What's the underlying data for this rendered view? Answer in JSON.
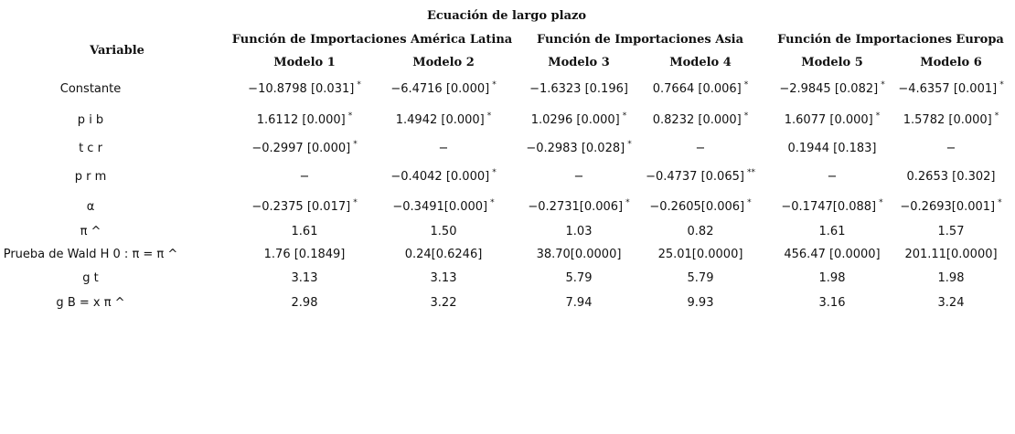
{
  "title": "Ecuación de largo plazo",
  "variable_header": "Variable",
  "groups": [
    "Función de Importaciones América Latina",
    "Función de Importaciones Asia",
    "Función de Importaciones Europa"
  ],
  "models": [
    "Modelo 1",
    "Modelo 2",
    "Modelo 3",
    "Modelo 4",
    "Modelo 5",
    "Modelo 6"
  ],
  "rows": [
    {
      "label": "Constante",
      "cells": [
        {
          "v": "−10.8798 [0.031]",
          "s": "*"
        },
        {
          "v": "−6.4716 [0.000]",
          "s": "*"
        },
        {
          "v": "−1.6323 [0.196]",
          "s": ""
        },
        {
          "v": "0.7664 [0.006]",
          "s": "*"
        },
        {
          "v": "−2.9845 [0.082]",
          "s": "*"
        },
        {
          "v": "−4.6357 [0.001]",
          "s": "*"
        }
      ]
    },
    {
      "label": "p i b",
      "cells": [
        {
          "v": "1.6112 [0.000]",
          "s": "*"
        },
        {
          "v": "1.4942 [0.000]",
          "s": "*"
        },
        {
          "v": "1.0296 [0.000]",
          "s": "*"
        },
        {
          "v": "0.8232 [0.000]",
          "s": "*"
        },
        {
          "v": "1.6077 [0.000]",
          "s": "*"
        },
        {
          "v": "1.5782 [0.000]",
          "s": "*"
        }
      ]
    },
    {
      "label": "t c r",
      "cells": [
        {
          "v": "−0.2997 [0.000]",
          "s": "*"
        },
        {
          "v": "−",
          "s": ""
        },
        {
          "v": "−0.2983 [0.028]",
          "s": "*"
        },
        {
          "v": "−",
          "s": ""
        },
        {
          "v": "0.1944 [0.183]",
          "s": ""
        },
        {
          "v": "−",
          "s": ""
        }
      ]
    },
    {
      "label": "p r m",
      "cells": [
        {
          "v": "−",
          "s": ""
        },
        {
          "v": "−0.4042 [0.000]",
          "s": "*"
        },
        {
          "v": "−",
          "s": ""
        },
        {
          "v": "−0.4737 [0.065]",
          "s": "**"
        },
        {
          "v": "−",
          "s": ""
        },
        {
          "v": "0.2653 [0.302]",
          "s": ""
        }
      ]
    },
    {
      "label": "α",
      "cells": [
        {
          "v": "−0.2375 [0.017]",
          "s": "*"
        },
        {
          "v": "−0.3491[0.000]",
          "s": "*"
        },
        {
          "v": "−0.2731[0.006]",
          "s": "*"
        },
        {
          "v": "−0.2605[0.006]",
          "s": "*"
        },
        {
          "v": "−0.1747[0.088]",
          "s": "*"
        },
        {
          "v": "−0.2693[0.001]",
          "s": "*"
        }
      ]
    },
    {
      "label": "π ^",
      "cells": [
        {
          "v": "1.61",
          "s": ""
        },
        {
          "v": "1.50",
          "s": ""
        },
        {
          "v": "1.03",
          "s": ""
        },
        {
          "v": "0.82",
          "s": ""
        },
        {
          "v": "1.61",
          "s": ""
        },
        {
          "v": "1.57",
          "s": ""
        }
      ]
    },
    {
      "label": "Prueba de Wald   H  0  : π =   π  ^",
      "cells": [
        {
          "v": "1.76 [0.1849]",
          "s": ""
        },
        {
          "v": "0.24[0.6246]",
          "s": ""
        },
        {
          "v": "38.70[0.0000]",
          "s": ""
        },
        {
          "v": "25.01[0.0000]",
          "s": ""
        },
        {
          "v": "456.47 [0.0000]",
          "s": ""
        },
        {
          "v": "201.11[0.0000]",
          "s": ""
        }
      ]
    },
    {
      "label": "g   t",
      "cells": [
        {
          "v": "3.13",
          "s": ""
        },
        {
          "v": "3.13",
          "s": ""
        },
        {
          "v": "5.79",
          "s": ""
        },
        {
          "v": "5.79",
          "s": ""
        },
        {
          "v": "1.98",
          "s": ""
        },
        {
          "v": "1.98",
          "s": ""
        }
      ]
    },
    {
      "label": "g   B   =   x     π  ^",
      "cells": [
        {
          "v": "2.98",
          "s": ""
        },
        {
          "v": "3.22",
          "s": ""
        },
        {
          "v": "7.94",
          "s": ""
        },
        {
          "v": "9.93",
          "s": ""
        },
        {
          "v": "3.16",
          "s": ""
        },
        {
          "v": "3.24",
          "s": ""
        }
      ]
    }
  ]
}
